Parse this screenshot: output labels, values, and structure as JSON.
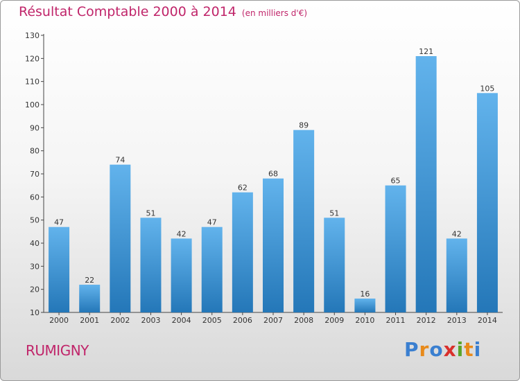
{
  "header": {
    "title": "Résultat Comptable 2000 à 2014",
    "subtitle": "(en milliers d'€)"
  },
  "footer": {
    "commune": "RUMIGNY",
    "logo_text": "Proxiti"
  },
  "colors": {
    "title": "#c0256a",
    "bar_light": "#62b3ec",
    "bar_dark": "#2477b8",
    "logo": [
      "#3a7fd0",
      "#e88a1a",
      "#3a7fd0",
      "#d9302c",
      "#5aa52a",
      "#e88a1a",
      "#3a7fd0"
    ]
  },
  "chart_data": {
    "type": "bar",
    "categories": [
      "2000",
      "2001",
      "2002",
      "2003",
      "2004",
      "2005",
      "2006",
      "2007",
      "2008",
      "2009",
      "2010",
      "2011",
      "2012",
      "2013",
      "2014"
    ],
    "values": [
      47,
      22,
      74,
      51,
      42,
      47,
      62,
      68,
      89,
      51,
      16,
      65,
      121,
      42,
      105
    ],
    "ylim": [
      10,
      130
    ],
    "yticks": [
      10,
      20,
      30,
      40,
      50,
      60,
      70,
      80,
      90,
      100,
      110,
      120,
      130
    ],
    "grid": false,
    "data_labels": true
  }
}
